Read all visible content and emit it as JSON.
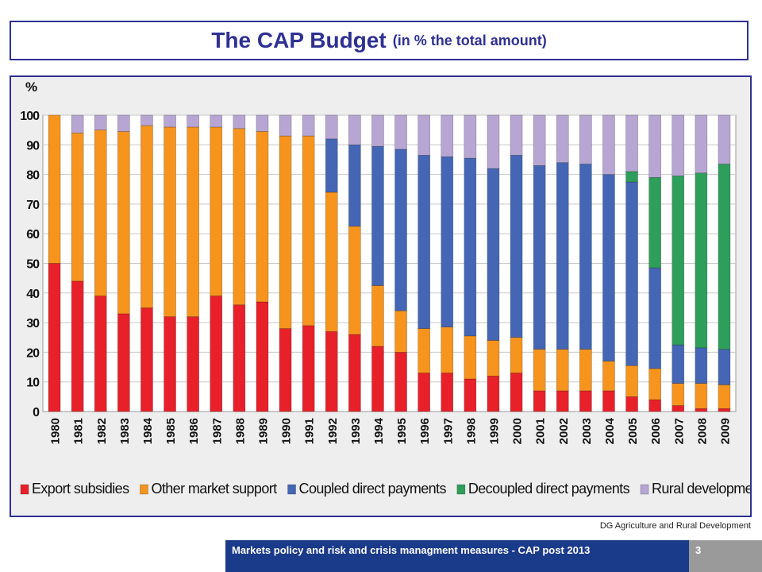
{
  "title": {
    "main": "The CAP Budget",
    "sub": "(in % the total amount)"
  },
  "credit": "DG Agriculture and Rural Development",
  "footer": {
    "text": "Markets policy and risk and crisis managment measures - CAP post 2013",
    "page": "3"
  },
  "colors": {
    "export": "#e8202a",
    "other": "#f7941d",
    "coupled": "#4466b4",
    "decoupled": "#2e9e5b",
    "rural": "#b7a6d3",
    "grid": "#c8c8c8",
    "frame_bg": "#eeeeee"
  },
  "chart_data": {
    "type": "bar",
    "stacked": true,
    "ylabel": "%",
    "ylim": [
      0,
      100
    ],
    "yticks": [
      "0",
      "10",
      "20",
      "30",
      "40",
      "50",
      "60",
      "70",
      "80",
      "90",
      "100"
    ],
    "categories": [
      "1980",
      "1981",
      "1982",
      "1983",
      "1984",
      "1985",
      "1986",
      "1987",
      "1988",
      "1989",
      "1990",
      "1991",
      "1992",
      "1993",
      "1994",
      "1995",
      "1996",
      "1997",
      "1998",
      "1999",
      "2000",
      "2001",
      "2002",
      "2003",
      "2004",
      "2005",
      "2006",
      "2007",
      "2008",
      "2009"
    ],
    "series": [
      {
        "name": "Export subsidies",
        "values": [
          50,
          44,
          39,
          33,
          35,
          32,
          32,
          39,
          36,
          37,
          28,
          29,
          27,
          26,
          22,
          20,
          13,
          13,
          11,
          12,
          13,
          7,
          7,
          7,
          7,
          5,
          4,
          2,
          1,
          1
        ]
      },
      {
        "name": "Other market support",
        "values": [
          50,
          50,
          56,
          61.5,
          61.5,
          64,
          64,
          57,
          59.5,
          57.5,
          65,
          64,
          47,
          36.5,
          20.5,
          14,
          15,
          15.5,
          14.5,
          12,
          12,
          14,
          14,
          14,
          10,
          10.5,
          10.5,
          7.5,
          8.5,
          8
        ]
      },
      {
        "name": "Coupled direct payments",
        "values": [
          0,
          0,
          0,
          0,
          0,
          0,
          0,
          0,
          0,
          0,
          0,
          0,
          18,
          27.5,
          47,
          54.5,
          58.5,
          57.5,
          60,
          58,
          61.5,
          62,
          63,
          62.5,
          63,
          62,
          34,
          13,
          12,
          12
        ]
      },
      {
        "name": "Decoupled direct payments",
        "values": [
          0,
          0,
          0,
          0,
          0,
          0,
          0,
          0,
          0,
          0,
          0,
          0,
          0,
          0,
          0,
          0,
          0,
          0,
          0,
          0,
          0,
          0,
          0,
          0,
          0,
          3.5,
          30.5,
          57,
          59,
          62.5
        ]
      },
      {
        "name": "Rural development",
        "values": [
          0,
          6,
          5,
          5.5,
          3.5,
          4,
          4,
          4,
          4.5,
          5.5,
          7,
          7,
          8,
          10,
          10.5,
          11.5,
          13.5,
          14,
          14.5,
          18,
          13.5,
          17,
          16,
          16.5,
          20,
          19,
          21,
          20.5,
          19.5,
          16.5
        ]
      }
    ]
  }
}
